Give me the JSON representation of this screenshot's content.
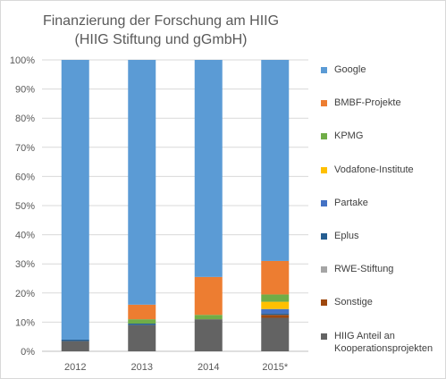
{
  "chart_data": {
    "type": "bar",
    "stacked": true,
    "title": "Finanzierung der Forschung am HIIG",
    "subtitle": "(HIIG Stiftung und gGmbH)",
    "categories": [
      "2012",
      "2013",
      "2014",
      "2015*"
    ],
    "ylim": [
      0,
      100
    ],
    "y_ticks": [
      "0%",
      "10%",
      "20%",
      "30%",
      "40%",
      "50%",
      "60%",
      "70%",
      "80%",
      "90%",
      "100%"
    ],
    "grid": true,
    "legend_position": "right",
    "series": [
      {
        "name": "HIIG Anteil an Kooperationsprojekten",
        "color": "#636363",
        "values": [
          3.5,
          9,
          11,
          11.5
        ]
      },
      {
        "name": "Sonstige",
        "color": "#9e480e",
        "values": [
          0,
          0,
          0,
          1
        ]
      },
      {
        "name": "RWE-Stiftung",
        "color": "#a5a5a5",
        "values": [
          0,
          0,
          0,
          0
        ]
      },
      {
        "name": "Eplus",
        "color": "#255e91",
        "values": [
          0.5,
          0.5,
          0,
          0.5
        ]
      },
      {
        "name": "Partake",
        "color": "#4472c4",
        "values": [
          0,
          0,
          0,
          1.5
        ]
      },
      {
        "name": "Vodafone-Institute",
        "color": "#ffc000",
        "values": [
          0,
          0,
          0,
          2.5
        ]
      },
      {
        "name": "KPMG",
        "color": "#70ad47",
        "values": [
          0,
          1.5,
          1.5,
          2.5
        ]
      },
      {
        "name": "BMBF-Projekte",
        "color": "#ed7d31",
        "values": [
          0,
          5,
          13,
          11.5
        ]
      },
      {
        "name": "Google",
        "color": "#5b9bd5",
        "values": [
          96,
          84,
          74.5,
          69
        ]
      }
    ]
  },
  "legend_items": [
    {
      "label": "Google",
      "color": "#5b9bd5"
    },
    {
      "label": "BMBF-Projekte",
      "color": "#ed7d31"
    },
    {
      "label": "KPMG",
      "color": "#70ad47"
    },
    {
      "label": "Vodafone-Institute",
      "color": "#ffc000"
    },
    {
      "label": "Partake",
      "color": "#4472c4"
    },
    {
      "label": "Eplus",
      "color": "#255e91"
    },
    {
      "label": "RWE-Stiftung",
      "color": "#a5a5a5"
    },
    {
      "label": "Sonstige",
      "color": "#9e480e"
    },
    {
      "label": "HIIG Anteil an\nKooperationsprojekten",
      "color": "#636363"
    }
  ]
}
